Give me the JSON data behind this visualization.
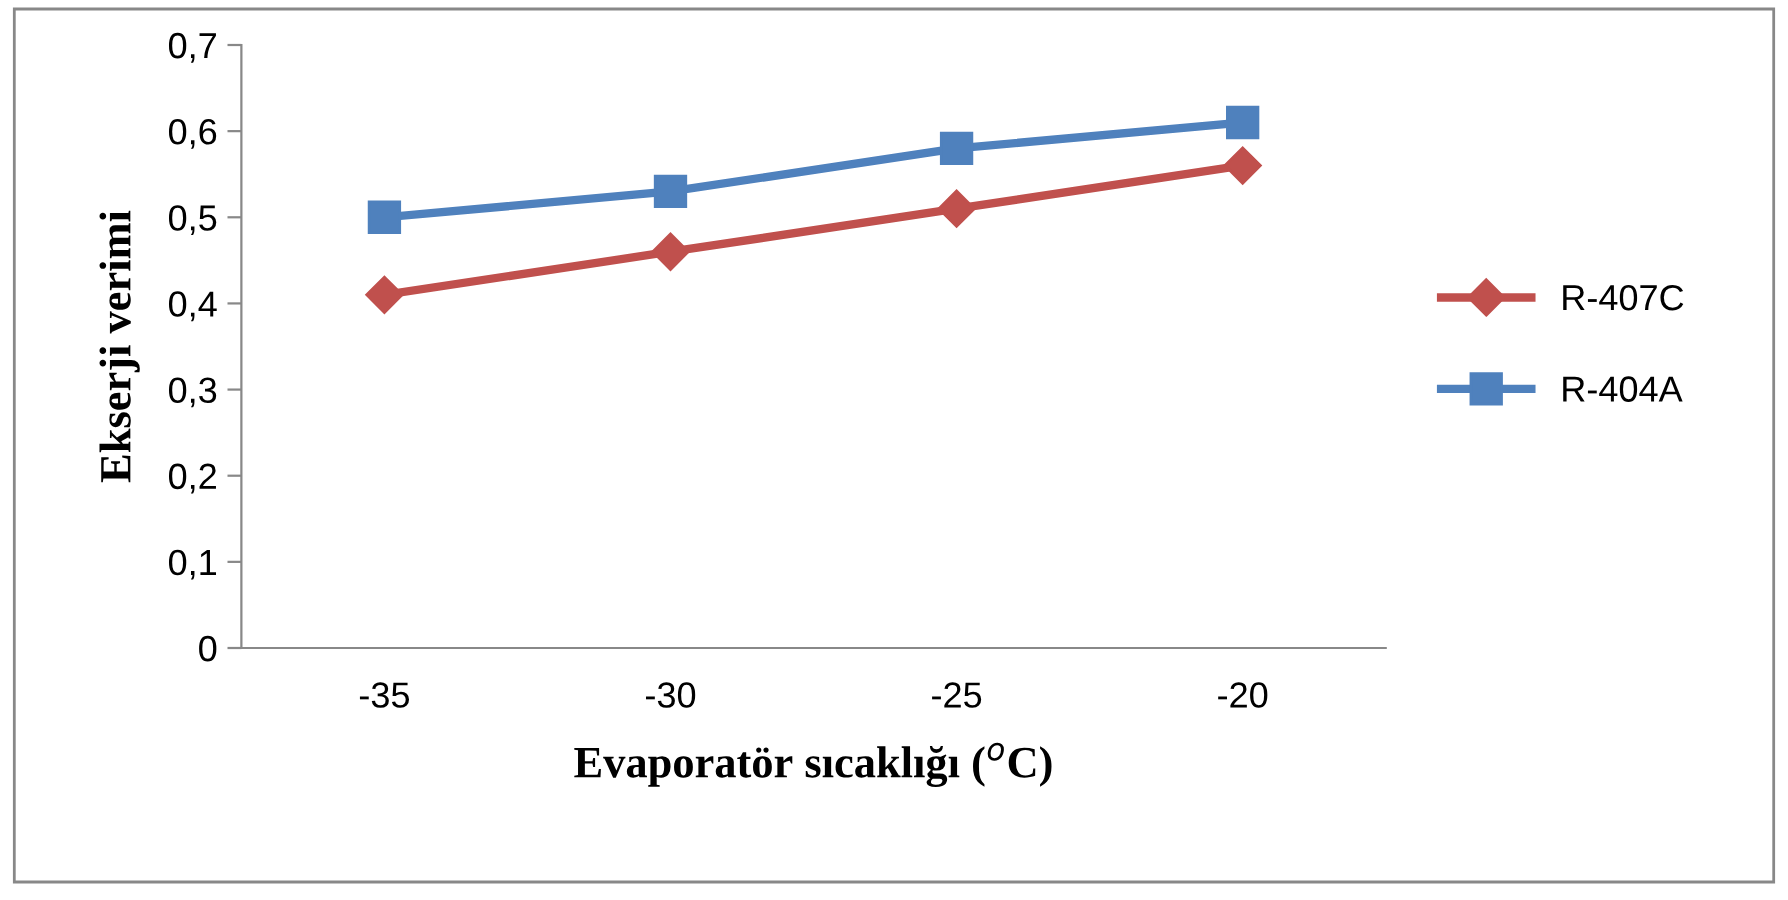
{
  "chart_data": {
    "type": "line",
    "categories": [
      "-35",
      "-30",
      "-25",
      "-20"
    ],
    "xlabel": "Evaporatör sıcaklığı ($^{o}$C)",
    "ylabel": "Ekserji verimi",
    "series": [
      {
        "name": "R-407C",
        "color": "#c0504d",
        "marker": "diamond",
        "values": [
          0.41,
          0.46,
          0.51,
          0.56
        ]
      },
      {
        "name": "R-404A",
        "color": "#4f81bd",
        "marker": "square",
        "values": [
          0.5,
          0.53,
          0.58,
          0.61
        ]
      }
    ],
    "ylim": [
      0,
      0.7
    ],
    "yticks": [
      0,
      {
        "value": 0.1,
        "label": "0,1"
      },
      {
        "value": 0.2,
        "label": "0,2"
      },
      {
        "value": 0.3,
        "label": "0,3"
      },
      {
        "value": 0.4,
        "label": "0,4"
      },
      {
        "value": 0.5,
        "label": "0,5"
      },
      {
        "value": 0.6,
        "label": "0,6"
      },
      {
        "value": 0.7,
        "label": "0,7"
      }
    ],
    "grid": false,
    "legend": "right",
    "line_style": "solid"
  }
}
